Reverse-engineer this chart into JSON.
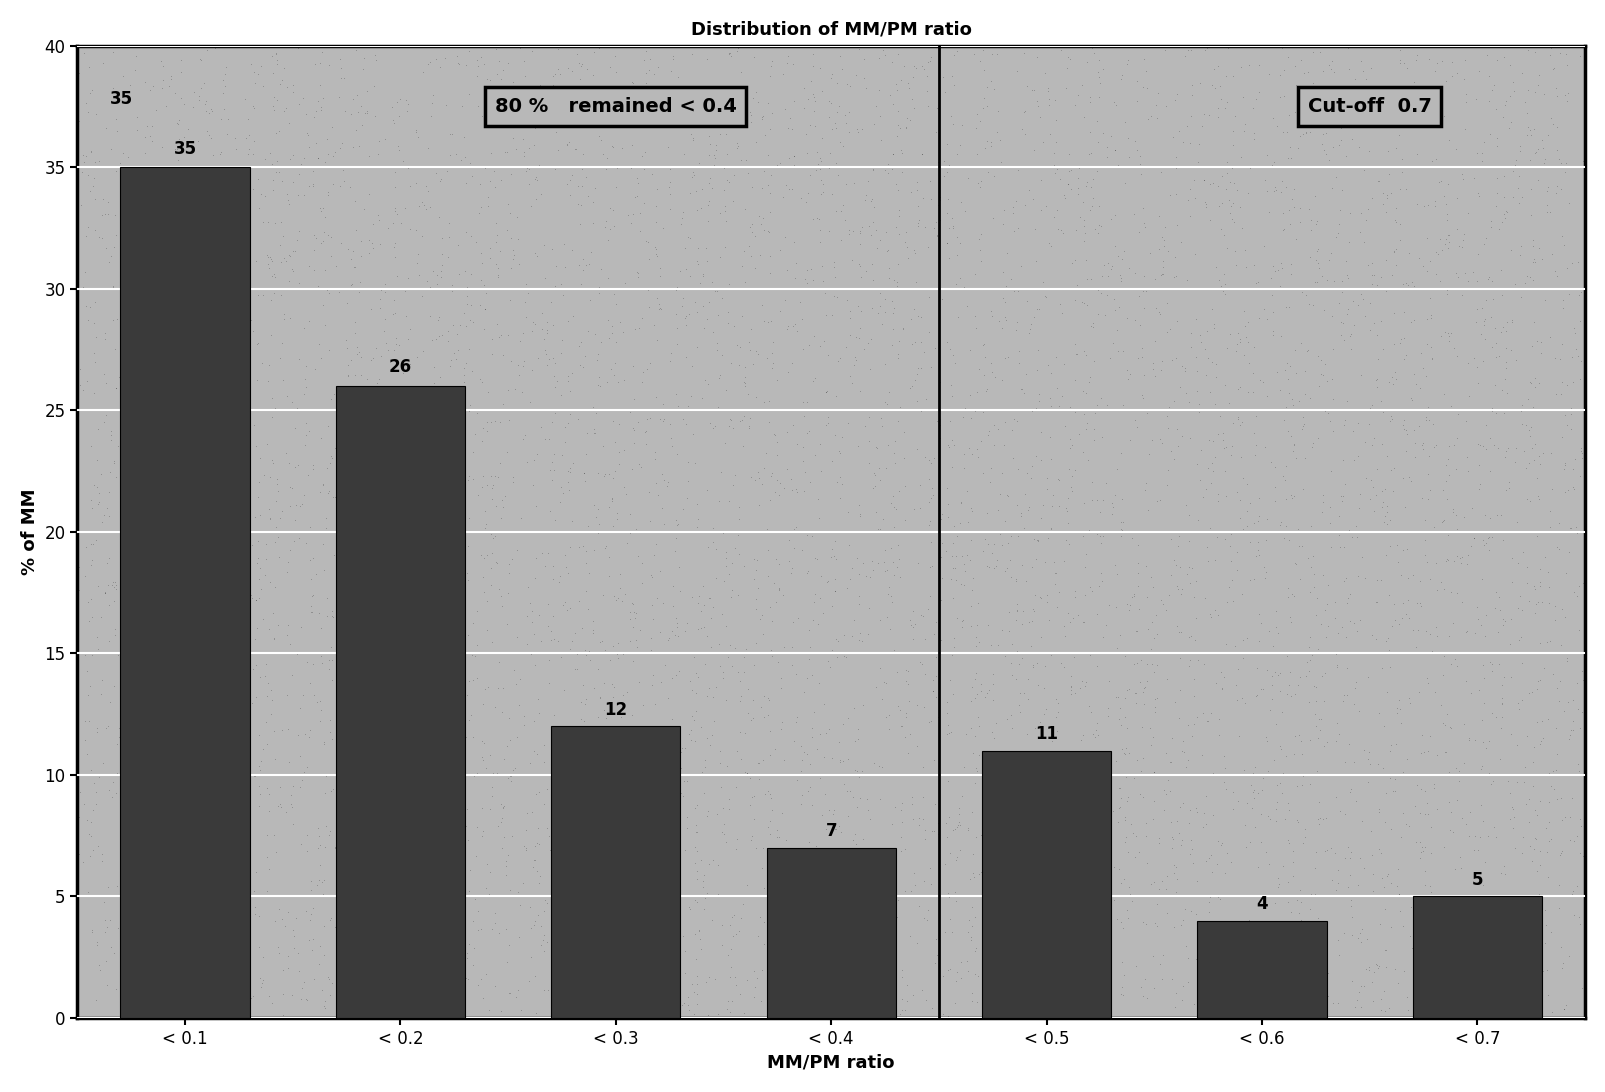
{
  "title": "Distribution of MM/PM ratio",
  "categories": [
    "< 0.1",
    "< 0.2",
    "< 0.3",
    "< 0.4",
    "< 0.5",
    "< 0.6",
    "< 0.7"
  ],
  "values": [
    35,
    26,
    12,
    7,
    11,
    4,
    5
  ],
  "bar_color": "#3a3a3a",
  "xlabel": "MM/PM ratio",
  "ylabel": "% of MM",
  "ylim": [
    0,
    40
  ],
  "yticks": [
    0,
    5,
    10,
    15,
    20,
    25,
    30,
    35,
    40
  ],
  "fig_bg_color": "#ffffff",
  "plot_bg_color": "#b8b8b8",
  "annotation1_text": "80 %   remained < 0.4",
  "annotation2_text": "Cut-off  0.7",
  "title_fontsize": 13,
  "axis_label_fontsize": 13,
  "tick_fontsize": 12,
  "bar_label_fontsize": 12,
  "annotation_fontsize": 14
}
